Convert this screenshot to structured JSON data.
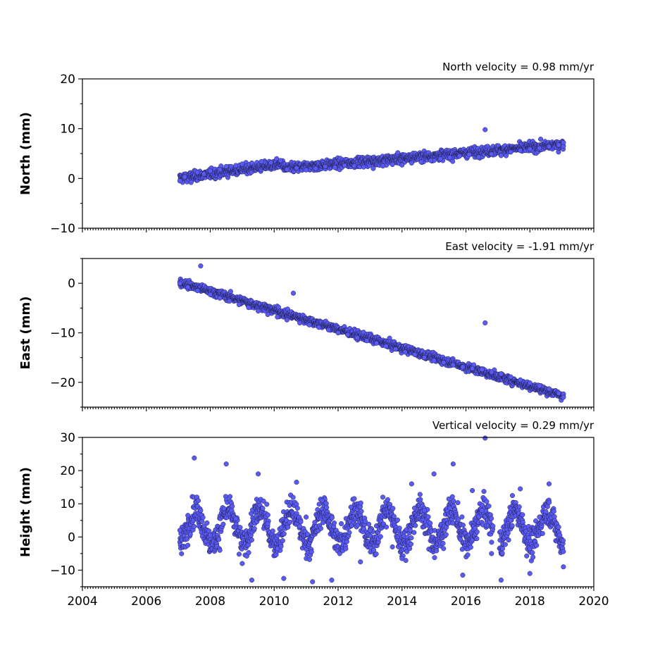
{
  "colors": {
    "marker_fill": "#5a5af5",
    "marker_edge": "#1a1a40",
    "axes": "#000000"
  },
  "chart_data": [
    {
      "type": "scatter",
      "title": "North velocity = 0.98 mm/yr",
      "xlabel": "",
      "ylabel": "North (mm)",
      "xlim": [
        2004,
        2020
      ],
      "ylim": [
        -10,
        20
      ],
      "x_ticks": [
        2004,
        2006,
        2008,
        2010,
        2012,
        2014,
        2016,
        2018,
        2020
      ],
      "y_ticks": [
        "−10",
        "0",
        "10",
        "20"
      ],
      "y_tick_values": [
        -10,
        0,
        10,
        20
      ],
      "show_x_tick_labels": false,
      "grid": false,
      "data_range": [
        2007.05,
        2019.05
      ],
      "series_summary": "daily positions; trend ~0 at 2007 rising to ~7 mm in 2019, scatter ~±1.5 mm",
      "points": [
        [
          2007.05,
          -0.5
        ],
        [
          2007.2,
          0.3
        ],
        [
          2007.4,
          -0.8
        ],
        [
          2007.6,
          1.2
        ],
        [
          2007.8,
          0.9
        ],
        [
          2008.0,
          1.5
        ],
        [
          2008.3,
          1.8
        ],
        [
          2008.5,
          2.4
        ],
        [
          2008.8,
          2.6
        ],
        [
          2009.0,
          2.9
        ],
        [
          2009.3,
          3.1
        ],
        [
          2009.6,
          3.4
        ],
        [
          2009.9,
          3.2
        ],
        [
          2010.2,
          3.6
        ],
        [
          2010.4,
          1.8
        ],
        [
          2010.7,
          2.1
        ],
        [
          2011.0,
          1.7
        ],
        [
          2011.3,
          2.0
        ],
        [
          2011.6,
          2.4
        ],
        [
          2011.9,
          2.2
        ],
        [
          2012.2,
          2.6
        ],
        [
          2012.5,
          2.5
        ],
        [
          2012.8,
          2.3
        ],
        [
          2013.1,
          2.0
        ],
        [
          2013.4,
          2.5
        ],
        [
          2013.7,
          2.8
        ],
        [
          2014.0,
          2.7
        ],
        [
          2014.3,
          3.1
        ],
        [
          2014.6,
          3.3
        ],
        [
          2014.9,
          3.6
        ],
        [
          2015.2,
          3.9
        ],
        [
          2015.5,
          4.2
        ],
        [
          2015.8,
          4.5
        ],
        [
          2016.1,
          4.8
        ],
        [
          2016.4,
          4.3
        ],
        [
          2016.6,
          9.8
        ],
        [
          2016.8,
          4.9
        ],
        [
          2017.1,
          4.6
        ],
        [
          2017.4,
          5.3
        ],
        [
          2017.7,
          5.6
        ],
        [
          2018.0,
          5.9
        ],
        [
          2018.3,
          6.1
        ],
        [
          2018.6,
          6.4
        ],
        [
          2018.9,
          6.7
        ],
        [
          2019.05,
          7.2
        ]
      ]
    },
    {
      "type": "scatter",
      "title": "East velocity = -1.91 mm/yr",
      "xlabel": "",
      "ylabel": "East (mm)",
      "xlim": [
        2004,
        2020
      ],
      "ylim": [
        -25,
        5
      ],
      "x_ticks": [
        2004,
        2006,
        2008,
        2010,
        2012,
        2014,
        2016,
        2018,
        2020
      ],
      "y_ticks": [
        "−20",
        "−10",
        "0"
      ],
      "y_tick_values": [
        -20,
        -10,
        0
      ],
      "show_x_tick_labels": false,
      "grid": false,
      "data_range": [
        2007.05,
        2019.05
      ],
      "series_summary": "daily positions; linear decline from ~0 mm in 2007 to ~-23 mm in 2019, scatter ~±1.2 mm",
      "points": [
        [
          2007.05,
          0.0
        ],
        [
          2007.3,
          -0.8
        ],
        [
          2007.6,
          -1.5
        ],
        [
          2007.7,
          3.5
        ],
        [
          2008.0,
          -2.3
        ],
        [
          2008.3,
          -3.0
        ],
        [
          2008.6,
          -3.6
        ],
        [
          2008.9,
          -4.3
        ],
        [
          2009.2,
          -4.9
        ],
        [
          2009.5,
          -5.6
        ],
        [
          2009.8,
          -6.3
        ],
        [
          2010.1,
          -6.8
        ],
        [
          2010.4,
          -7.4
        ],
        [
          2010.6,
          -2.0
        ],
        [
          2010.8,
          -8.0
        ],
        [
          2011.1,
          -8.4
        ],
        [
          2011.4,
          -8.9
        ],
        [
          2011.7,
          -9.4
        ],
        [
          2012.0,
          -10.0
        ],
        [
          2012.3,
          -10.4
        ],
        [
          2012.6,
          -11.0
        ],
        [
          2012.9,
          -11.6
        ],
        [
          2013.2,
          -12.1
        ],
        [
          2013.5,
          -12.7
        ],
        [
          2013.8,
          -13.3
        ],
        [
          2014.1,
          -13.9
        ],
        [
          2014.4,
          -14.4
        ],
        [
          2014.7,
          -15.0
        ],
        [
          2015.0,
          -15.6
        ],
        [
          2015.3,
          -16.0
        ],
        [
          2015.6,
          -16.5
        ],
        [
          2015.9,
          -16.9
        ],
        [
          2016.2,
          -17.2
        ],
        [
          2016.5,
          -17.4
        ],
        [
          2016.6,
          -8.0
        ],
        [
          2016.8,
          -17.9
        ],
        [
          2017.1,
          -18.3
        ],
        [
          2017.4,
          -18.9
        ],
        [
          2017.7,
          -19.5
        ],
        [
          2018.0,
          -20.1
        ],
        [
          2018.3,
          -20.7
        ],
        [
          2018.6,
          -21.3
        ],
        [
          2018.9,
          -22.2
        ],
        [
          2019.05,
          -23.0
        ]
      ]
    },
    {
      "type": "scatter",
      "title": "Vertical velocity = 0.29 mm/yr",
      "xlabel": "",
      "ylabel": "Height (mm)",
      "xlim": [
        2004,
        2020
      ],
      "ylim": [
        -15,
        30
      ],
      "x_ticks": [
        2004,
        2006,
        2008,
        2010,
        2012,
        2014,
        2016,
        2018,
        2020
      ],
      "x_tick_labels": [
        "2004",
        "2006",
        "2008",
        "2010",
        "2012",
        "2014",
        "2016",
        "2018",
        "2020"
      ],
      "y_ticks": [
        "−10",
        "0",
        "10",
        "20",
        "30"
      ],
      "y_tick_values": [
        -10,
        0,
        10,
        20,
        30
      ],
      "show_x_tick_labels": true,
      "grid": false,
      "data_range": [
        2007.05,
        2019.05
      ],
      "data_gap": [
        2016.85,
        2017.05
      ],
      "series_summary": "daily positions; mean ~3 mm with annual oscillation, scatter ~±6 mm, outliers to ~30 and ~-14 mm",
      "points": [
        [
          2007.05,
          2.0
        ],
        [
          2007.3,
          6.5
        ],
        [
          2007.5,
          23.8
        ],
        [
          2007.7,
          8.0
        ],
        [
          2008.0,
          0.5
        ],
        [
          2008.3,
          -4.0
        ],
        [
          2008.5,
          22.0
        ],
        [
          2008.8,
          5.5
        ],
        [
          2009.0,
          -8.0
        ],
        [
          2009.3,
          -13.0
        ],
        [
          2009.5,
          19.0
        ],
        [
          2009.8,
          4.0
        ],
        [
          2010.1,
          -3.5
        ],
        [
          2010.3,
          -12.5
        ],
        [
          2010.7,
          16.5
        ],
        [
          2011.0,
          6.0
        ],
        [
          2011.2,
          -13.5
        ],
        [
          2011.5,
          11.0
        ],
        [
          2011.8,
          -13.0
        ],
        [
          2012.1,
          4.0
        ],
        [
          2012.4,
          9.0
        ],
        [
          2012.7,
          -7.5
        ],
        [
          2013.0,
          2.0
        ],
        [
          2013.4,
          12.0
        ],
        [
          2013.7,
          -3.0
        ],
        [
          2014.0,
          -6.5
        ],
        [
          2014.3,
          16.0
        ],
        [
          2014.7,
          8.0
        ],
        [
          2015.0,
          19.0
        ],
        [
          2015.3,
          -3.5
        ],
        [
          2015.6,
          22.0
        ],
        [
          2015.9,
          -11.5
        ],
        [
          2016.2,
          14.0
        ],
        [
          2016.5,
          8.0
        ],
        [
          2016.6,
          29.8
        ],
        [
          2016.8,
          -5.0
        ],
        [
          2017.1,
          -13.0
        ],
        [
          2017.4,
          5.0
        ],
        [
          2017.7,
          14.5
        ],
        [
          2018.0,
          -11.0
        ],
        [
          2018.3,
          6.0
        ],
        [
          2018.6,
          16.0
        ],
        [
          2018.9,
          3.0
        ],
        [
          2019.05,
          -9.0
        ]
      ]
    }
  ]
}
